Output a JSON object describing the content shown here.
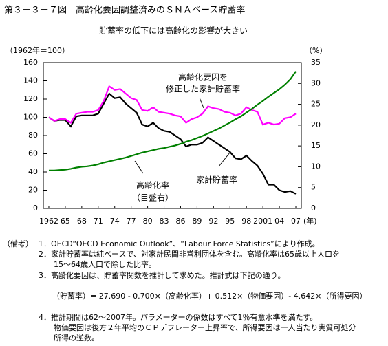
{
  "chart_data": {
    "type": "line",
    "title": "第３－３－７図　高齢化要因調整済みのＳＮＡベース貯蓄率",
    "subtitle": "貯蓄率の低下には高齢化の影響が大きい",
    "ylabel": "（1962年＝100）",
    "y2label": "（%）",
    "xlabel": "(年)",
    "x": [
      1962,
      1963,
      1964,
      1965,
      1966,
      1967,
      1968,
      1969,
      1970,
      1971,
      1972,
      1973,
      1974,
      1975,
      1976,
      1977,
      1978,
      1979,
      1980,
      1981,
      1982,
      1983,
      1984,
      1985,
      1986,
      1987,
      1988,
      1989,
      1990,
      1991,
      1992,
      1993,
      1994,
      1995,
      1996,
      1997,
      1998,
      1999,
      2000,
      2001,
      2002,
      2003,
      2004,
      2005,
      2006,
      2007
    ],
    "xlim": [
      1961,
      2008
    ],
    "xticks": [
      1962,
      {
        "value": 1965,
        "label": "65"
      },
      {
        "value": 1968,
        "label": "68"
      },
      {
        "value": 1971,
        "label": "71"
      },
      {
        "value": 1974,
        "label": "74"
      },
      {
        "value": 1977,
        "label": "77"
      },
      {
        "value": 1980,
        "label": "80"
      },
      {
        "value": 1983,
        "label": "83"
      },
      {
        "value": 1986,
        "label": "86"
      },
      {
        "value": 1989,
        "label": "89"
      },
      {
        "value": 1992,
        "label": "92"
      },
      {
        "value": 1995,
        "label": "95"
      },
      {
        "value": 1998,
        "label": "98"
      },
      2001,
      {
        "value": 2004,
        "label": "04"
      },
      {
        "value": 2007,
        "label": "07"
      }
    ],
    "ylim": [
      0,
      160
    ],
    "yticks": [
      0,
      20,
      40,
      60,
      80,
      100,
      120,
      140,
      160
    ],
    "y2lim": [
      0,
      35
    ],
    "y2ticks": [
      0,
      5,
      10,
      15,
      20,
      25,
      30,
      35
    ],
    "grid": false,
    "series": [
      {
        "label": [
          "家計貯蓄率"
        ],
        "color": "#000000",
        "values": [
          100,
          96,
          97,
          97,
          90,
          101,
          102,
          102,
          102,
          104,
          115,
          126,
          121,
          122,
          115,
          110,
          105,
          92,
          90,
          94,
          88,
          85,
          84,
          80,
          76,
          68,
          70,
          70,
          72,
          78,
          74,
          70,
          66,
          62,
          55,
          54,
          58,
          52,
          47,
          38,
          26,
          26,
          20,
          18,
          19,
          16
        ]
      },
      {
        "label": [
          "高齢化要因を",
          "修正した家計貯蓄率"
        ],
        "color": "#ff00ff",
        "values": [
          100,
          96,
          98,
          98,
          94,
          104,
          105,
          106,
          106,
          108,
          118,
          134,
          130,
          131,
          126,
          121,
          119,
          108,
          107,
          111,
          106,
          105,
          104,
          102,
          101,
          94,
          98,
          100,
          104,
          112,
          110,
          109,
          106,
          105,
          102,
          104,
          111,
          108,
          106,
          92,
          94,
          92,
          93,
          99,
          100,
          104
        ]
      },
      {
        "label": [
          "高齢化率",
          "（目盛右）"
        ],
        "color": "#008000",
        "axis": "y2",
        "values": [
          9.1,
          9.1,
          9.2,
          9.3,
          9.5,
          9.8,
          10.0,
          10.1,
          10.3,
          10.6,
          11.0,
          11.3,
          11.6,
          11.9,
          12.2,
          12.6,
          13.0,
          13.4,
          13.7,
          14.0,
          14.3,
          14.5,
          14.8,
          15.1,
          15.5,
          16.0,
          16.4,
          16.9,
          17.4,
          18.0,
          18.6,
          19.2,
          19.9,
          20.6,
          21.4,
          22.1,
          23.0,
          23.9,
          24.9,
          25.8,
          26.8,
          27.7,
          28.6,
          29.7,
          31.0,
          32.9
        ]
      }
    ]
  },
  "notes": {
    "label": "（備考）",
    "items": [
      [
        "1．OECD“OECD Economic Outlook”、“Labour Force Statistics”により作成。"
      ],
      [
        "2．家計貯蓄率は純ベースで、対家計民間非営利団体を含む。高齢化率は65歳以上人口を",
        "15～64歳人口で除した比率。"
      ],
      [
        "3．高齢化要因は、貯蓄率関数を推計して求めた。推計式は下記の通り。"
      ],
      [
        "4．推計期間は62～2007年。パラメーターの係数はすべて1％有意水準を満たす。",
        "物価要因は後方２年平均のＣＰデフレーター上昇率で、所得要因は一人当たり実質可処分",
        "所得の逆数。"
      ]
    ],
    "formula": "（貯蓄率）= 27.690 - 0.700×（高齢化率）+ 0.512×（物価要因）- 4.642×（所得要因）"
  }
}
